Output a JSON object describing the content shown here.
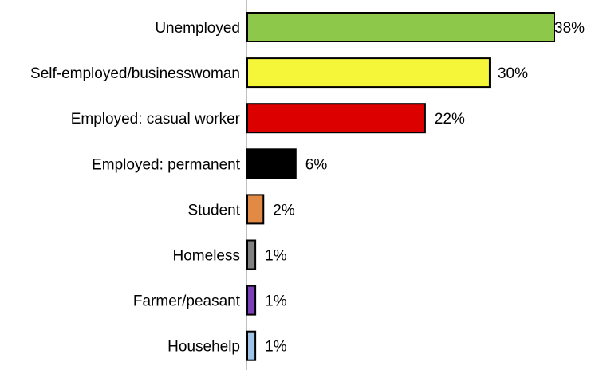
{
  "chart_data": {
    "type": "bar",
    "orientation": "horizontal",
    "title": "",
    "xlabel": "",
    "ylabel": "",
    "grid": false,
    "legend": "none",
    "xlim": [
      0,
      38
    ],
    "categories": [
      "Unemployed",
      "Self-employed/businesswoman",
      "Employed: casual worker",
      "Employed: permanent",
      "Student",
      "Homeless",
      "Farmer/peasant",
      "Househelp"
    ],
    "values": [
      38,
      30,
      22,
      6,
      2,
      1,
      1,
      1
    ],
    "value_labels": [
      "38%",
      "30%",
      "22%",
      "6%",
      "2%",
      "1%",
      "1%",
      "1%"
    ],
    "colors": [
      "#8DC84B",
      "#F5F53A",
      "#DD0000",
      "#000000",
      "#E08A46",
      "#808080",
      "#7B3FB8",
      "#9DC3E6"
    ]
  }
}
